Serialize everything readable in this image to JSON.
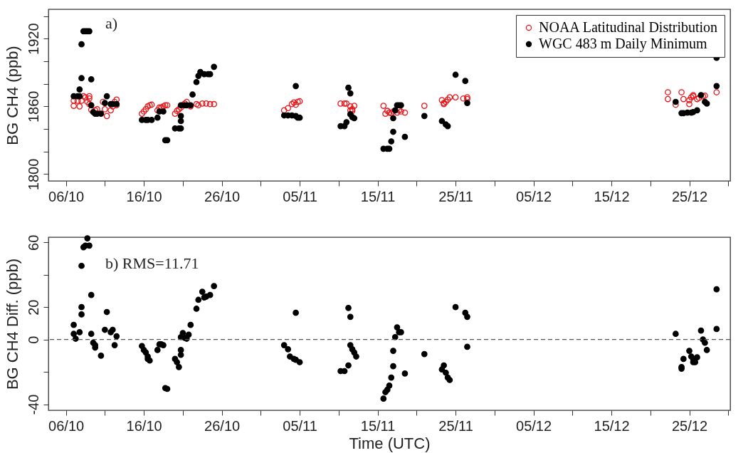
{
  "chart_data": [
    {
      "type": "scatter",
      "ylabel": "BG CH4 (ppb)",
      "ylim": [
        1794,
        1946
      ],
      "yticks": [
        1800,
        {
          "value": 1820,
          "label": null
        },
        {
          "value": 1840,
          "label": null
        },
        1860,
        {
          "value": 1880,
          "label": null
        },
        {
          "value": 1900,
          "label": null
        },
        1920,
        {
          "value": 1940,
          "label": null
        }
      ],
      "xlim": [
        "--10-03T18:00",
        "--12-30T06:00"
      ],
      "xticks": [
        {
          "value": "--10-06",
          "label": "06/10"
        },
        {
          "value": "--10-11",
          "label": null
        },
        {
          "value": "--10-16",
          "label": "16/10"
        },
        {
          "value": "--10-21",
          "label": null
        },
        {
          "value": "--10-26",
          "label": "26/10"
        },
        {
          "value": "--10-31",
          "label": null
        },
        {
          "value": "--11-05",
          "label": "05/11"
        },
        {
          "value": "--11-10",
          "label": null
        },
        {
          "value": "--11-15",
          "label": "15/11"
        },
        {
          "value": "--11-20",
          "label": null
        },
        {
          "value": "--11-25",
          "label": "25/11"
        },
        {
          "value": "--11-30",
          "label": null
        },
        {
          "value": "--12-05",
          "label": "05/12"
        },
        {
          "value": "--12-10",
          "label": null
        },
        {
          "value": "--12-15",
          "label": "15/12"
        },
        {
          "value": "--12-20",
          "label": null
        },
        {
          "value": "--12-25",
          "label": "25/12"
        },
        {
          "value": "--12-30",
          "label": null
        }
      ],
      "legend": "top right",
      "marker": "circle",
      "grid": false,
      "annotations": [
        "a)"
      ],
      "series": [
        {
          "name": "NOAA Latitudinal Distribution",
          "color": "#e8161b",
          "x": [
            "--10-07T00:00",
            "--10-07T00:00",
            "--10-07T12:00",
            "--10-07T18:00",
            "--10-08T00:00",
            "--10-08T06:00",
            "--10-08T12:00",
            "--10-08T18:00",
            "--10-09T00:00",
            "--10-09T00:00",
            "--10-09T00:00",
            "--10-09T06:00",
            "--10-09T18:00",
            "--10-10T00:00",
            "--10-10T18:00",
            "--10-11T00:00",
            "--10-11T06:00",
            "--10-11T18:00",
            "--10-12T00:00",
            "--10-12T06:00",
            "--10-12T12:00",
            "--10-12T12:00",
            "--10-15T18:00",
            "--10-16T00:00",
            "--10-16T06:00",
            "--10-16T12:00",
            "--10-16T18:00",
            "--10-17T00:00",
            "--10-17T18:00",
            "--10-18T00:00",
            "--10-18T06:00",
            "--10-18T12:00",
            "--10-18T18:00",
            "--10-19T00:00",
            "--10-20T00:00",
            "--10-20T06:00",
            "--10-20T12:00",
            "--10-20T18:00",
            "--10-21T00:00",
            "--10-21T06:00",
            "--10-21T12:00",
            "--10-22T00:00",
            "--10-22T18:00",
            "--10-23T00:00",
            "--10-23T12:00",
            "--10-24T00:00",
            "--10-24T12:00",
            "--10-25T00:00",
            "--11-03T00:00",
            "--11-03T12:00",
            "--11-04T00:00",
            "--11-04T06:00",
            "--11-04T12:00",
            "--11-04T18:00",
            "--11-05T00:00",
            "--11-10T06:00",
            "--11-10T18:00",
            "--11-11T00:00",
            "--11-11T12:00",
            "--11-11T18:00",
            "--11-12T00:00",
            "--11-11T12:00",
            "--11-11T18:00",
            "--11-15T18:00",
            "--11-16T00:00",
            "--11-16T06:00",
            "--11-16T12:00",
            "--11-16T18:00",
            "--11-17T00:00",
            "--11-17T12:00",
            "--11-17T18:00",
            "--11-18T00:00",
            "--11-18T12:00",
            "--11-21T00:00",
            "--11-23T06:00",
            "--11-23T12:00",
            "--11-23T12:00",
            "--11-23T18:00",
            "--11-24T00:00",
            "--11-24T06:00",
            "--11-25T00:00",
            "--11-26T00:00",
            "--11-26T12:00",
            "--11-26T12:00",
            "--12-22T06:00",
            "--12-22T06:00",
            "--12-23T06:00",
            "--12-24T00:00",
            "--12-24T06:00",
            "--12-25T00:00",
            "--12-25T00:00",
            "--12-25T06:00",
            "--12-25T12:00",
            "--12-25T12:00",
            "--12-26T00:00",
            "--12-26T06:00",
            "--12-26T18:00",
            "--12-27T00:00",
            "--12-28T12:00"
          ],
          "values": [
            1860.5,
            1865,
            1865,
            1860,
            1865,
            1869,
            1868,
            1864,
            1869,
            1867,
            1862,
            1857,
            1856.5,
            1857.5,
            1864,
            1857.5,
            1851.5,
            1856.5,
            1860,
            1864,
            1866,
            1861,
            1853.5,
            1855.5,
            1857.5,
            1860,
            1861,
            1861.5,
            1856.5,
            1859,
            1859,
            1860,
            1861,
            1861,
            1853.5,
            1856,
            1857.5,
            1859,
            1861,
            1862.5,
            1864,
            1860,
            1862,
            1861,
            1862.5,
            1862.5,
            1862,
            1862,
            1856.5,
            1858.5,
            1862,
            1863.5,
            1861.5,
            1864,
            1864.5,
            1862.5,
            1862.5,
            1862.5,
            1860,
            1857.5,
            1860.5,
            1856.5,
            1856,
            1860.5,
            1853.5,
            1856,
            1854.5,
            1854,
            1855.5,
            1854.5,
            1856.5,
            1855.5,
            1854.5,
            1860.5,
            1865.5,
            1862,
            1863,
            1864,
            1866,
            1868,
            1868,
            1867,
            1868,
            1866.5,
            1872.5,
            1866.5,
            1861.5,
            1872.5,
            1866.5,
            1862,
            1865.5,
            1868,
            1870,
            1869,
            1866.5,
            1867.5,
            1869,
            1869.5,
            1872.5
          ]
        },
        {
          "name": "WGC 483 m Daily Minimum",
          "color": "#000000",
          "x": [
            "--10-07T00:00",
            "--10-07T12:00",
            "--10-07T18:00",
            "--10-07T18:00",
            "--10-08T00:00",
            "--10-08T00:00",
            "--10-08T06:00",
            "--10-08T12:00",
            "--10-08T18:00",
            "--10-09T00:00",
            "--10-09T06:00",
            "--10-09T06:00",
            "--10-09T12:00",
            "--10-09T18:00",
            "--10-10T00:00",
            "--10-10T12:00",
            "--10-11T00:00",
            "--10-11T06:00",
            "--10-11T18:00",
            "--10-12T00:00",
            "--10-12T12:00",
            "--10-15T18:00",
            "--10-16T06:00",
            "--10-16T12:00",
            "--10-17T00:00",
            "--10-17T18:00",
            "--10-18T00:00",
            "--10-18T12:00",
            "--10-18T18:00",
            "--10-19T00:00",
            "--10-20T00:00",
            "--10-20T12:00",
            "--10-20T18:00",
            "--10-20T18:00",
            "--10-20T18:00",
            "--10-20T18:00",
            "--10-21T06:00",
            "--10-21T12:00",
            "--10-22T00:00",
            "--10-22T06:00",
            "--10-22T18:00",
            "--10-23T00:00",
            "--10-23T06:00",
            "--10-23T18:00",
            "--10-24T06:00",
            "--10-24T12:00",
            "--10-25T00:00",
            "--11-03T00:00",
            "--11-03T12:00",
            "--11-04T00:00",
            "--11-04T12:00",
            "--11-04T18:00",
            "--11-05T00:00",
            "--11-04T12:00",
            "--11-10T06:00",
            "--11-10T18:00",
            "--11-11T00:00",
            "--11-11T06:00",
            "--11-11T12:00",
            "--11-11T12:00",
            "--11-11T18:00",
            "--11-12T00:00",
            "--11-15T18:00",
            "--11-16T06:00",
            "--11-16T12:00",
            "--11-16T18:00",
            "--11-17T00:00",
            "--11-17T00:00",
            "--11-17T06:00",
            "--11-17T12:00",
            "--11-17T18:00",
            "--11-18T00:00",
            "--11-18T12:00",
            "--11-21T00:00",
            "--11-23T06:00",
            "--11-23T18:00",
            "--11-24T00:00",
            "--11-25T00:00",
            "--11-26T06:00",
            "--11-26T12:00",
            "--12-23T06:00",
            "--12-24T00:00",
            "--12-24T06:00",
            "--12-24T18:00",
            "--12-25T06:00",
            "--12-25T12:00",
            "--12-26T00:00",
            "--12-26T12:00",
            "--12-27T00:00",
            "--12-27T06:00",
            "--12-28T12:00",
            "--12-28T12:00"
          ],
          "values": [
            1869,
            1869,
            1869,
            1875,
            1885,
            1915,
            1926.5,
            1926.5,
            1926.5,
            1926.5,
            1884,
            1861,
            1855,
            1853.5,
            1853.5,
            1853.5,
            1863,
            1869,
            1862,
            1862,
            1862,
            1848,
            1848,
            1848,
            1848,
            1850,
            1855.5,
            1855.5,
            1830,
            1830,
            1840.5,
            1840.5,
            1840.5,
            1847,
            1851.5,
            1861,
            1861,
            1861,
            1861,
            1870.5,
            1881.5,
            1887,
            1890.5,
            1888.5,
            1888.5,
            1888.5,
            1895,
            1852,
            1852,
            1852,
            1851.5,
            1850,
            1850,
            1878,
            1842.5,
            1842.5,
            1846,
            1876.5,
            1871.5,
            1853,
            1850.5,
            1849.5,
            1822.5,
            1822.5,
            1822.5,
            1829,
            1837.5,
            1849.5,
            1856.5,
            1861,
            1861,
            1861,
            1833,
            1851.5,
            1847,
            1844,
            1842.5,
            1888,
            1882.5,
            1863,
            1864,
            1854,
            1854,
            1854.5,
            1854.5,
            1855,
            1856.5,
            1870,
            1864,
            1862.5,
            1878,
            1903
          ]
        }
      ]
    },
    {
      "type": "scatter",
      "xlabel": "Time (UTC)",
      "ylabel": "BG CH4 Diff. (ppb)",
      "ylim": [
        -43.7,
        63.2
      ],
      "yticks": [
        -40,
        {
          "value": -20,
          "label": null
        },
        0,
        20,
        {
          "value": 40,
          "label": null
        },
        60
      ],
      "xlim": [
        "--10-03T18:00",
        "--12-30T06:00"
      ],
      "xticks": [
        {
          "value": "--10-06",
          "label": "06/10"
        },
        {
          "value": "--10-11",
          "label": null
        },
        {
          "value": "--10-16",
          "label": "16/10"
        },
        {
          "value": "--10-21",
          "label": null
        },
        {
          "value": "--10-26",
          "label": "26/10"
        },
        {
          "value": "--10-31",
          "label": null
        },
        {
          "value": "--11-05",
          "label": "05/11"
        },
        {
          "value": "--11-10",
          "label": null
        },
        {
          "value": "--11-15",
          "label": "15/11"
        },
        {
          "value": "--11-20",
          "label": null
        },
        {
          "value": "--11-25",
          "label": "25/11"
        },
        {
          "value": "--11-30",
          "label": null
        },
        {
          "value": "--12-05",
          "label": "05/12"
        },
        {
          "value": "--12-10",
          "label": null
        },
        {
          "value": "--12-15",
          "label": "15/12"
        },
        {
          "value": "--12-20",
          "label": null
        },
        {
          "value": "--12-25",
          "label": "25/12"
        },
        {
          "value": "--12-30",
          "label": null
        }
      ],
      "marker": "circle",
      "grid": false,
      "annotations": [
        "b)  RMS=11.71"
      ],
      "ref_lines": [
        {
          "axis": "y",
          "value": 0,
          "color": "#555555",
          "line_style": "dashed"
        }
      ],
      "series": [
        {
          "color": "#000000",
          "x": [
            "--10-07T00:00",
            "--10-07T00:00",
            "--10-07T06:00",
            "--10-07T18:00",
            "--10-08T00:00",
            "--10-08T00:00",
            "--10-08T00:00",
            "--10-08T06:00",
            "--10-08T12:00",
            "--10-08T18:00",
            "--10-09T00:00",
            "--10-09T06:00",
            "--10-09T06:00",
            "--10-09T12:00",
            "--10-09T18:00",
            "--10-09T18:00",
            "--10-10T12:00",
            "--10-11T00:00",
            "--10-11T06:00",
            "--10-11T18:00",
            "--10-12T00:00",
            "--10-12T12:00",
            "--10-12T06:00",
            "--10-15T18:00",
            "--10-16T00:00",
            "--10-16T06:00",
            "--10-16T12:00",
            "--10-16T12:00",
            "--10-16T18:00",
            "--10-17T18:00",
            "--10-18T00:00",
            "--10-18T06:00",
            "--10-18T12:00",
            "--10-18T18:00",
            "--10-19T00:00",
            "--10-20T00:00",
            "--10-20T06:00",
            "--10-20T12:00",
            "--10-20T18:00",
            "--10-20T18:00",
            "--10-20T18:00",
            "--10-21T00:00",
            "--10-21T06:00",
            "--10-21T12:00",
            "--10-21T18:00",
            "--10-22T00:00",
            "--10-22T18:00",
            "--10-23T00:00",
            "--10-23T12:00",
            "--10-23T18:00",
            "--10-24T00:00",
            "--10-24T12:00",
            "--10-25T00:00",
            "--11-03T00:00",
            "--11-03T12:00",
            "--11-03T18:00",
            "--11-04T06:00",
            "--11-04T12:00",
            "--11-05T00:00",
            "--11-04T12:00",
            "--11-10T06:00",
            "--11-10T18:00",
            "--11-11T06:00",
            "--11-11T06:00",
            "--11-11T12:00",
            "--11-11T12:00",
            "--11-11T18:00",
            "--11-12T00:00",
            "--11-12T06:00",
            "--11-15T18:00",
            "--11-16T00:00",
            "--11-16T06:00",
            "--11-16T12:00",
            "--11-16T18:00",
            "--11-17T00:00",
            "--11-17T00:00",
            "--11-17T06:00",
            "--11-17T12:00",
            "--11-17T18:00",
            "--11-18T00:00",
            "--11-18T12:00",
            "--11-21T00:00",
            "--11-23T12:00",
            "--11-23T06:00",
            "--11-23T18:00",
            "--11-24T00:00",
            "--11-24T06:00",
            "--11-25T00:00",
            "--11-26T06:00",
            "--11-26T12:00",
            "--11-26T12:00",
            "--12-23T06:00",
            "--12-24T00:00",
            "--12-24T00:00",
            "--12-24T06:00",
            "--12-25T00:00",
            "--12-25T06:00",
            "--12-25T12:00",
            "--12-25T18:00",
            "--12-26T00:00",
            "--12-25T12:00",
            "--12-26T12:00",
            "--12-26T18:00",
            "--12-27T00:00",
            "--12-27T06:00",
            "--12-28T12:00",
            "--12-28T12:00"
          ],
          "values": [
            9,
            3.5,
            0.5,
            4.5,
            15.5,
            20,
            45.5,
            57,
            58,
            62.5,
            58,
            27.5,
            3.5,
            -2,
            -3.5,
            -5,
            -10,
            6,
            17,
            4.5,
            6,
            2,
            -3.5,
            -4,
            -6.5,
            -8,
            -10.5,
            -12,
            -13,
            -6.5,
            -3,
            -3,
            -3.5,
            -30,
            -30.5,
            -12,
            -14,
            -17,
            -9.5,
            -6.5,
            1.5,
            4,
            1,
            0.5,
            3,
            9,
            19,
            24.5,
            29.5,
            26,
            26.5,
            27.5,
            33,
            -3.5,
            -6,
            -10.5,
            -12,
            -12.5,
            -14,
            16.5,
            -19.5,
            -19.5,
            -16,
            19.5,
            14,
            -3.5,
            -6,
            -8,
            -10.5,
            -36.5,
            -32.5,
            -31,
            -28.5,
            -23.5,
            -16.5,
            -7,
            1.5,
            7.5,
            4.5,
            4.5,
            -21,
            -9,
            -16,
            -18.5,
            -20.5,
            -23.5,
            -25,
            20,
            16.5,
            14,
            -4.5,
            3.5,
            -17,
            -18,
            -12,
            -7,
            -10.5,
            -14,
            -14,
            -11,
            -12,
            5.5,
            0,
            -2,
            -6.5,
            6.5,
            31
          ]
        }
      ]
    }
  ]
}
